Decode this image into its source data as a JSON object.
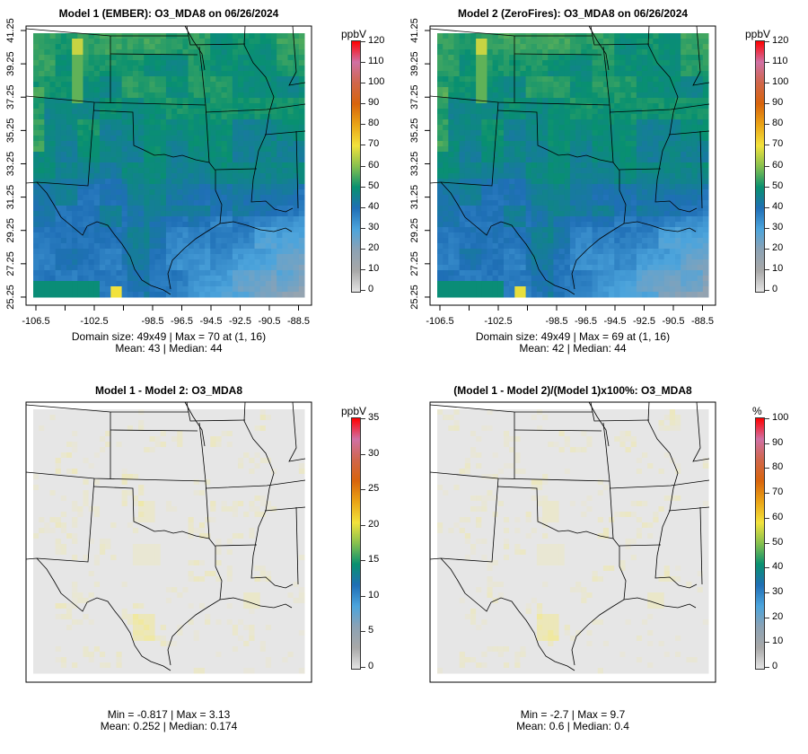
{
  "panels": [
    {
      "title": "Model 1 (EMBER): O3_MDA8 on 06/26/2024",
      "kind": "abs",
      "seed": 1,
      "stats_line1": "Domain size: 49x49 | Max = 70 at (1, 16)",
      "stats_line2": "Mean: 43 |  Median: 44",
      "unit": "ppbV",
      "scale_max": 120,
      "ticks": [
        "120",
        "110",
        "100",
        "90",
        "80",
        "70",
        "60",
        "50",
        "40",
        "30",
        "20",
        "10",
        "0"
      ]
    },
    {
      "title": "Model 2 (ZeroFires): O3_MDA8 on 06/26/2024",
      "kind": "abs",
      "seed": 2,
      "stats_line1": "Domain size: 49x49 | Max = 69 at (1, 16)",
      "stats_line2": "Mean: 42 |  Median: 44",
      "unit": "ppbV",
      "scale_max": 120,
      "ticks": [
        "120",
        "110",
        "100",
        "90",
        "80",
        "70",
        "60",
        "50",
        "40",
        "30",
        "20",
        "10",
        "0"
      ]
    },
    {
      "title": "Model 1 - Model 2: O3_MDA8",
      "kind": "diff",
      "seed": 3,
      "stats_line1": "Min = -0.817 | Max = 3.13",
      "stats_line2": "Mean: 0.252 |  Median: 0.174",
      "unit": "ppbV",
      "scale_max": 35,
      "ticks": [
        "35",
        "30",
        "25",
        "20",
        "15",
        "10",
        "5",
        "0"
      ]
    },
    {
      "title": "(Model 1 - Model 2)/(Model 1)x100%: O3_MDA8",
      "kind": "pct",
      "seed": 4,
      "stats_line1": "Min = -2.7 | Max = 9.7",
      "stats_line2": "Mean: 0.6 |  Median: 0.4",
      "unit": "%",
      "scale_max": 100,
      "ticks": [
        "100",
        "90",
        "80",
        "70",
        "60",
        "50",
        "40",
        "30",
        "20",
        "10",
        "0"
      ]
    }
  ],
  "chart_data": {
    "type": "heatmap",
    "variable": "O3_MDA8",
    "date": "06/26/2024",
    "grid": "49x49",
    "x_ticks": [
      "-106.5",
      "-102.5",
      "-98.5",
      "-96.5",
      "-94.5",
      "-92.5",
      "-90.5",
      "-88.5"
    ],
    "y_ticks": [
      "41.25",
      "39.25",
      "37.25",
      "35.25",
      "33.25",
      "31.25",
      "29.25",
      "27.25",
      "25.25"
    ],
    "xlim": [
      -106.5,
      -88.5
    ],
    "ylim": [
      25.25,
      41.25
    ],
    "colors": {
      "c0": "#e4e4e4",
      "c10": "#a8a8a8",
      "c20": "#8ca2b4",
      "c30": "#4ca4dc",
      "c40": "#1f6fb6",
      "c50": "#089070",
      "c60": "#86c04e",
      "c70": "#f2e23c",
      "c80": "#eaa416",
      "c90": "#d8640c",
      "c100": "#d0664a",
      "c110": "#d070a4",
      "c120": "#ff0000"
    }
  }
}
